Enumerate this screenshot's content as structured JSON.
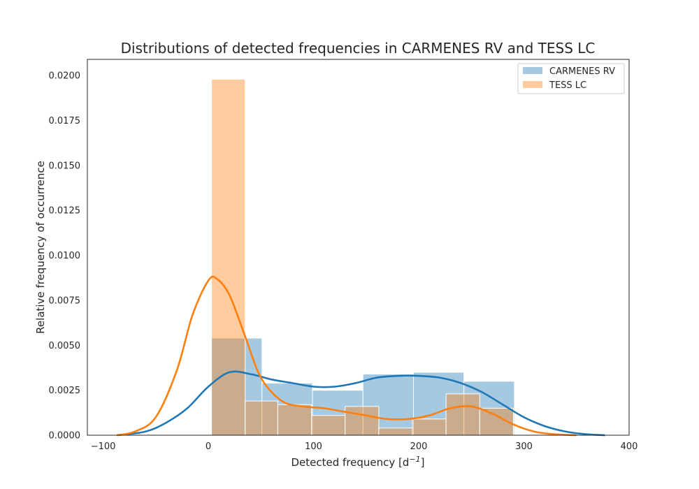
{
  "chart_data": {
    "type": "histogram",
    "title": "Distributions of detected frequencies in CARMENES RV and TESS LC",
    "xlabel": "Detected frequency [d",
    "xlabel_sup": "−1",
    "xlabel_close": "]",
    "ylabel": "Relative frequency of occurrence",
    "xlim": [
      -115,
      400
    ],
    "ylim": [
      0,
      0.0209
    ],
    "xticks": [
      -100,
      0,
      100,
      200,
      300,
      400
    ],
    "xtick_labels": [
      "−100",
      "0",
      "100",
      "200",
      "300",
      "400"
    ],
    "yticks": [
      0,
      0.0025,
      0.005,
      0.0075,
      0.01,
      0.0125,
      0.015,
      0.0175,
      0.02
    ],
    "ytick_labels": [
      "0.0000",
      "0.0025",
      "0.0050",
      "0.0075",
      "0.0100",
      "0.0125",
      "0.0150",
      "0.0175",
      "0.0200"
    ],
    "grid": false,
    "legend_position": "top-right",
    "series": [
      {
        "name": "CARMENES RV",
        "color": "#1f77b4",
        "bins": [
          [
            3,
            51,
            0.0054
          ],
          [
            51,
            99,
            0.0029
          ],
          [
            99,
            147,
            0.0025
          ],
          [
            147,
            195,
            0.0034
          ],
          [
            195,
            243,
            0.0035
          ],
          [
            243,
            291,
            0.003
          ]
        ],
        "kde": [
          [
            -87,
            0.0
          ],
          [
            -60,
            0.0002
          ],
          [
            -40,
            0.0007
          ],
          [
            -20,
            0.0015
          ],
          [
            0,
            0.0027
          ],
          [
            20,
            0.0035
          ],
          [
            40,
            0.0034
          ],
          [
            60,
            0.0031
          ],
          [
            80,
            0.0029
          ],
          [
            100,
            0.0027
          ],
          [
            120,
            0.0027
          ],
          [
            140,
            0.0029
          ],
          [
            160,
            0.0032
          ],
          [
            180,
            0.0033
          ],
          [
            200,
            0.0033
          ],
          [
            220,
            0.0032
          ],
          [
            240,
            0.0029
          ],
          [
            260,
            0.0024
          ],
          [
            280,
            0.0017
          ],
          [
            300,
            0.001
          ],
          [
            320,
            0.0005
          ],
          [
            340,
            0.0002
          ],
          [
            360,
            5e-05
          ],
          [
            377,
            0.0
          ]
        ]
      },
      {
        "name": "TESS LC",
        "color": "#ff7f0e",
        "bins": [
          [
            3,
            35,
            0.0198
          ],
          [
            35,
            66,
            0.0019
          ],
          [
            66,
            98,
            0.0017
          ],
          [
            98,
            130,
            0.0011
          ],
          [
            130,
            162,
            0.0016
          ],
          [
            162,
            194,
            0.0004
          ],
          [
            194,
            226,
            0.0009
          ],
          [
            226,
            258,
            0.0023
          ],
          [
            258,
            290,
            0.0015
          ]
        ],
        "kde": [
          [
            -87,
            0.0
          ],
          [
            -70,
            0.0002
          ],
          [
            -50,
            0.001
          ],
          [
            -30,
            0.0036
          ],
          [
            -15,
            0.0067
          ],
          [
            0,
            0.0086
          ],
          [
            8,
            0.0087
          ],
          [
            20,
            0.0078
          ],
          [
            35,
            0.0055
          ],
          [
            50,
            0.0032
          ],
          [
            70,
            0.0019
          ],
          [
            90,
            0.0016
          ],
          [
            110,
            0.0015
          ],
          [
            130,
            0.0013
          ],
          [
            150,
            0.0011
          ],
          [
            170,
            0.0009
          ],
          [
            190,
            0.0009
          ],
          [
            210,
            0.0011
          ],
          [
            230,
            0.0015
          ],
          [
            250,
            0.0016
          ],
          [
            270,
            0.0012
          ],
          [
            290,
            0.0006
          ],
          [
            310,
            0.0002
          ],
          [
            330,
            5e-05
          ],
          [
            350,
            0.0
          ]
        ]
      }
    ]
  }
}
